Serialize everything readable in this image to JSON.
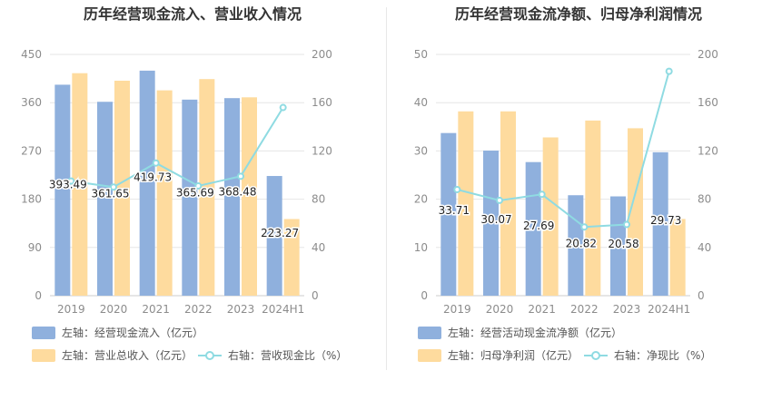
{
  "colors": {
    "bar_primary": "#8fb0dd",
    "bar_secondary": "#fedb9e",
    "line": "#8fdbe2",
    "axis_text": "#8c8c8c",
    "grid": "#e6e6e6",
    "title": "#333333",
    "value_label": "#222222"
  },
  "chart_data": [
    {
      "type": "bar",
      "title": "历年经营现金流入、营业收入情况",
      "categories": [
        "2019",
        "2020",
        "2021",
        "2022",
        "2023",
        "2024H1"
      ],
      "y_left": {
        "min": 0,
        "max": 450,
        "ticks": [
          0,
          90,
          180,
          270,
          360,
          450
        ]
      },
      "y_right": {
        "min": 0,
        "max": 200,
        "ticks": [
          0,
          40,
          80,
          120,
          160,
          200
        ]
      },
      "series": [
        {
          "name": "左轴：经营现金流入（亿元）",
          "kind": "bar",
          "axis": "left",
          "color": "#8fb0dd",
          "values": [
            393.49,
            361.65,
            419.73,
            365.69,
            368.48,
            223.27
          ],
          "labels": [
            "393.49",
            "361.65",
            "419.73",
            "365.69",
            "368.48",
            "223.27"
          ]
        },
        {
          "name": "左轴：营业总收入（亿元）",
          "kind": "bar",
          "axis": "left",
          "color": "#fedb9e",
          "values": [
            415,
            401,
            383,
            404,
            370,
            143
          ]
        },
        {
          "name": "右轴：营收现金比（%）",
          "kind": "line",
          "axis": "right",
          "color": "#8fdbe2",
          "values": [
            95,
            90,
            110,
            91,
            99,
            156
          ]
        }
      ],
      "legend_rows": [
        [
          "左轴：经营现金流入（亿元）"
        ],
        [
          "左轴：营业总收入（亿元）",
          "右轴：营收现金比（%）"
        ]
      ]
    },
    {
      "type": "bar",
      "title": "历年经营现金流净额、归母净利润情况",
      "categories": [
        "2019",
        "2020",
        "2021",
        "2022",
        "2023",
        "2024H1"
      ],
      "y_left": {
        "min": 0,
        "max": 50,
        "ticks": [
          0,
          10,
          20,
          30,
          40,
          50
        ]
      },
      "y_right": {
        "min": 0,
        "max": 200,
        "ticks": [
          0,
          40,
          80,
          120,
          160,
          200
        ]
      },
      "series": [
        {
          "name": "左轴：经营活动现金流净额（亿元）",
          "kind": "bar",
          "axis": "left",
          "color": "#8fb0dd",
          "values": [
            33.71,
            30.07,
            27.69,
            20.82,
            20.58,
            29.73
          ],
          "labels": [
            "33.71",
            "30.07",
            "27.69",
            "20.82",
            "20.58",
            "29.73"
          ]
        },
        {
          "name": "左轴：归母净利润（亿元）",
          "kind": "bar",
          "axis": "left",
          "color": "#fedb9e",
          "values": [
            38.2,
            38.2,
            32.8,
            36.3,
            34.7,
            15.9
          ]
        },
        {
          "name": "右轴：净现比（%）",
          "kind": "line",
          "axis": "right",
          "color": "#8fdbe2",
          "values": [
            88,
            79,
            84,
            57,
            59,
            186
          ]
        }
      ],
      "legend_rows": [
        [
          "左轴：经营活动现金流净额（亿元）"
        ],
        [
          "左轴：归母净利润（亿元）",
          "右轴：净现比（%）"
        ]
      ]
    }
  ]
}
